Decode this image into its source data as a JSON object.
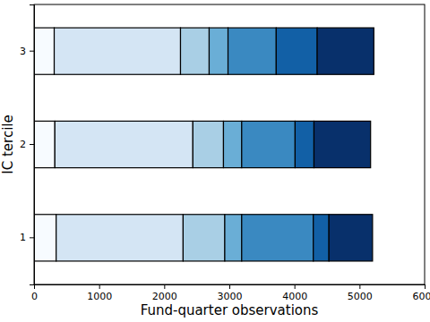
{
  "chart_data": {
    "type": "bar",
    "orientation": "horizontal",
    "stacked": true,
    "x_label": "Fund-quarter observations",
    "y_label": "IC tercile",
    "categories": [
      "1",
      "2",
      "3"
    ],
    "series": [
      {
        "color": "#f7fbff",
        "values": [
          340,
          320,
          310
        ]
      },
      {
        "color": "#d4e5f4",
        "values": [
          1950,
          2120,
          1940
        ]
      },
      {
        "color": "#a9cfe5",
        "values": [
          640,
          470,
          440
        ]
      },
      {
        "color": "#6aaed6",
        "values": [
          260,
          280,
          290
        ]
      },
      {
        "color": "#3a89c1",
        "values": [
          1100,
          820,
          740
        ]
      },
      {
        "color": "#1260a6",
        "values": [
          240,
          290,
          630
        ]
      },
      {
        "color": "#08306b",
        "values": [
          670,
          870,
          870
        ]
      }
    ],
    "xlim": [
      0,
      6000
    ],
    "xticks": [
      0,
      1000,
      2000,
      3000,
      4000,
      5000,
      6000
    ]
  }
}
